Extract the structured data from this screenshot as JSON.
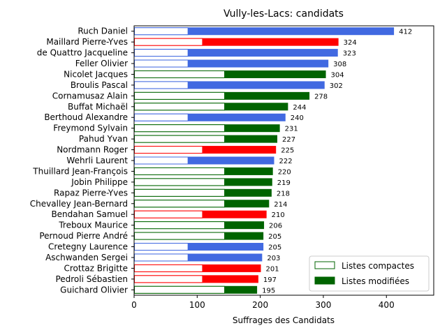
{
  "chart_data": {
    "type": "bar",
    "orientation": "horizontal",
    "stacked": true,
    "title": "Vully-les-Lacs: candidats",
    "xlabel": "Suffrages des Candidats",
    "ylabel": "",
    "xlim": [
      0,
      475
    ],
    "xticks": [
      0,
      100,
      200,
      300,
      400
    ],
    "grid": false,
    "legend": {
      "placement": "lower-right",
      "entries": [
        {
          "name": "Listes compactes",
          "style": "outline",
          "color": "#006400"
        },
        {
          "name": "Listes modifiées",
          "style": "filled",
          "color": "#006400"
        }
      ]
    },
    "categories": [
      "Ruch Daniel",
      "Maillard Pierre-Yves",
      "de Quattro Jacqueline",
      "Feller Olivier",
      "Nicolet Jacques",
      "Broulis Pascal",
      "Cornamusaz Alain",
      "Buffat Michaël",
      "Berthoud Alexandre",
      "Freymond Sylvain",
      "Pahud Yvan",
      "Nordmann Roger",
      "Wehrli Laurent",
      "Thuillard Jean-François",
      "Jobin Philippe",
      "Rapaz Pierre-Yves",
      "Chevalley Jean-Bernard",
      "Bendahan Samuel",
      "Treboux Maurice",
      "Pernoud Pierre André",
      "Cretegny Laurence",
      "Aschwanden Sergei",
      "Crottaz Brigitte",
      "Pedroli Sébastien",
      "Guichard Olivier"
    ],
    "totals": [
      412,
      324,
      323,
      308,
      304,
      302,
      278,
      244,
      240,
      231,
      227,
      225,
      222,
      220,
      219,
      218,
      214,
      210,
      206,
      205,
      205,
      203,
      201,
      197,
      195
    ],
    "compact": [
      86,
      109,
      86,
      86,
      144,
      86,
      144,
      144,
      86,
      144,
      144,
      109,
      86,
      144,
      144,
      144,
      144,
      109,
      144,
      144,
      86,
      86,
      109,
      109,
      144
    ],
    "party_colors": [
      "#4169E1",
      "#FF0000",
      "#4169E1",
      "#4169E1",
      "#006400",
      "#4169E1",
      "#006400",
      "#006400",
      "#4169E1",
      "#006400",
      "#006400",
      "#FF0000",
      "#4169E1",
      "#006400",
      "#006400",
      "#006400",
      "#006400",
      "#FF0000",
      "#006400",
      "#006400",
      "#4169E1",
      "#4169E1",
      "#FF0000",
      "#FF0000",
      "#006400"
    ]
  }
}
